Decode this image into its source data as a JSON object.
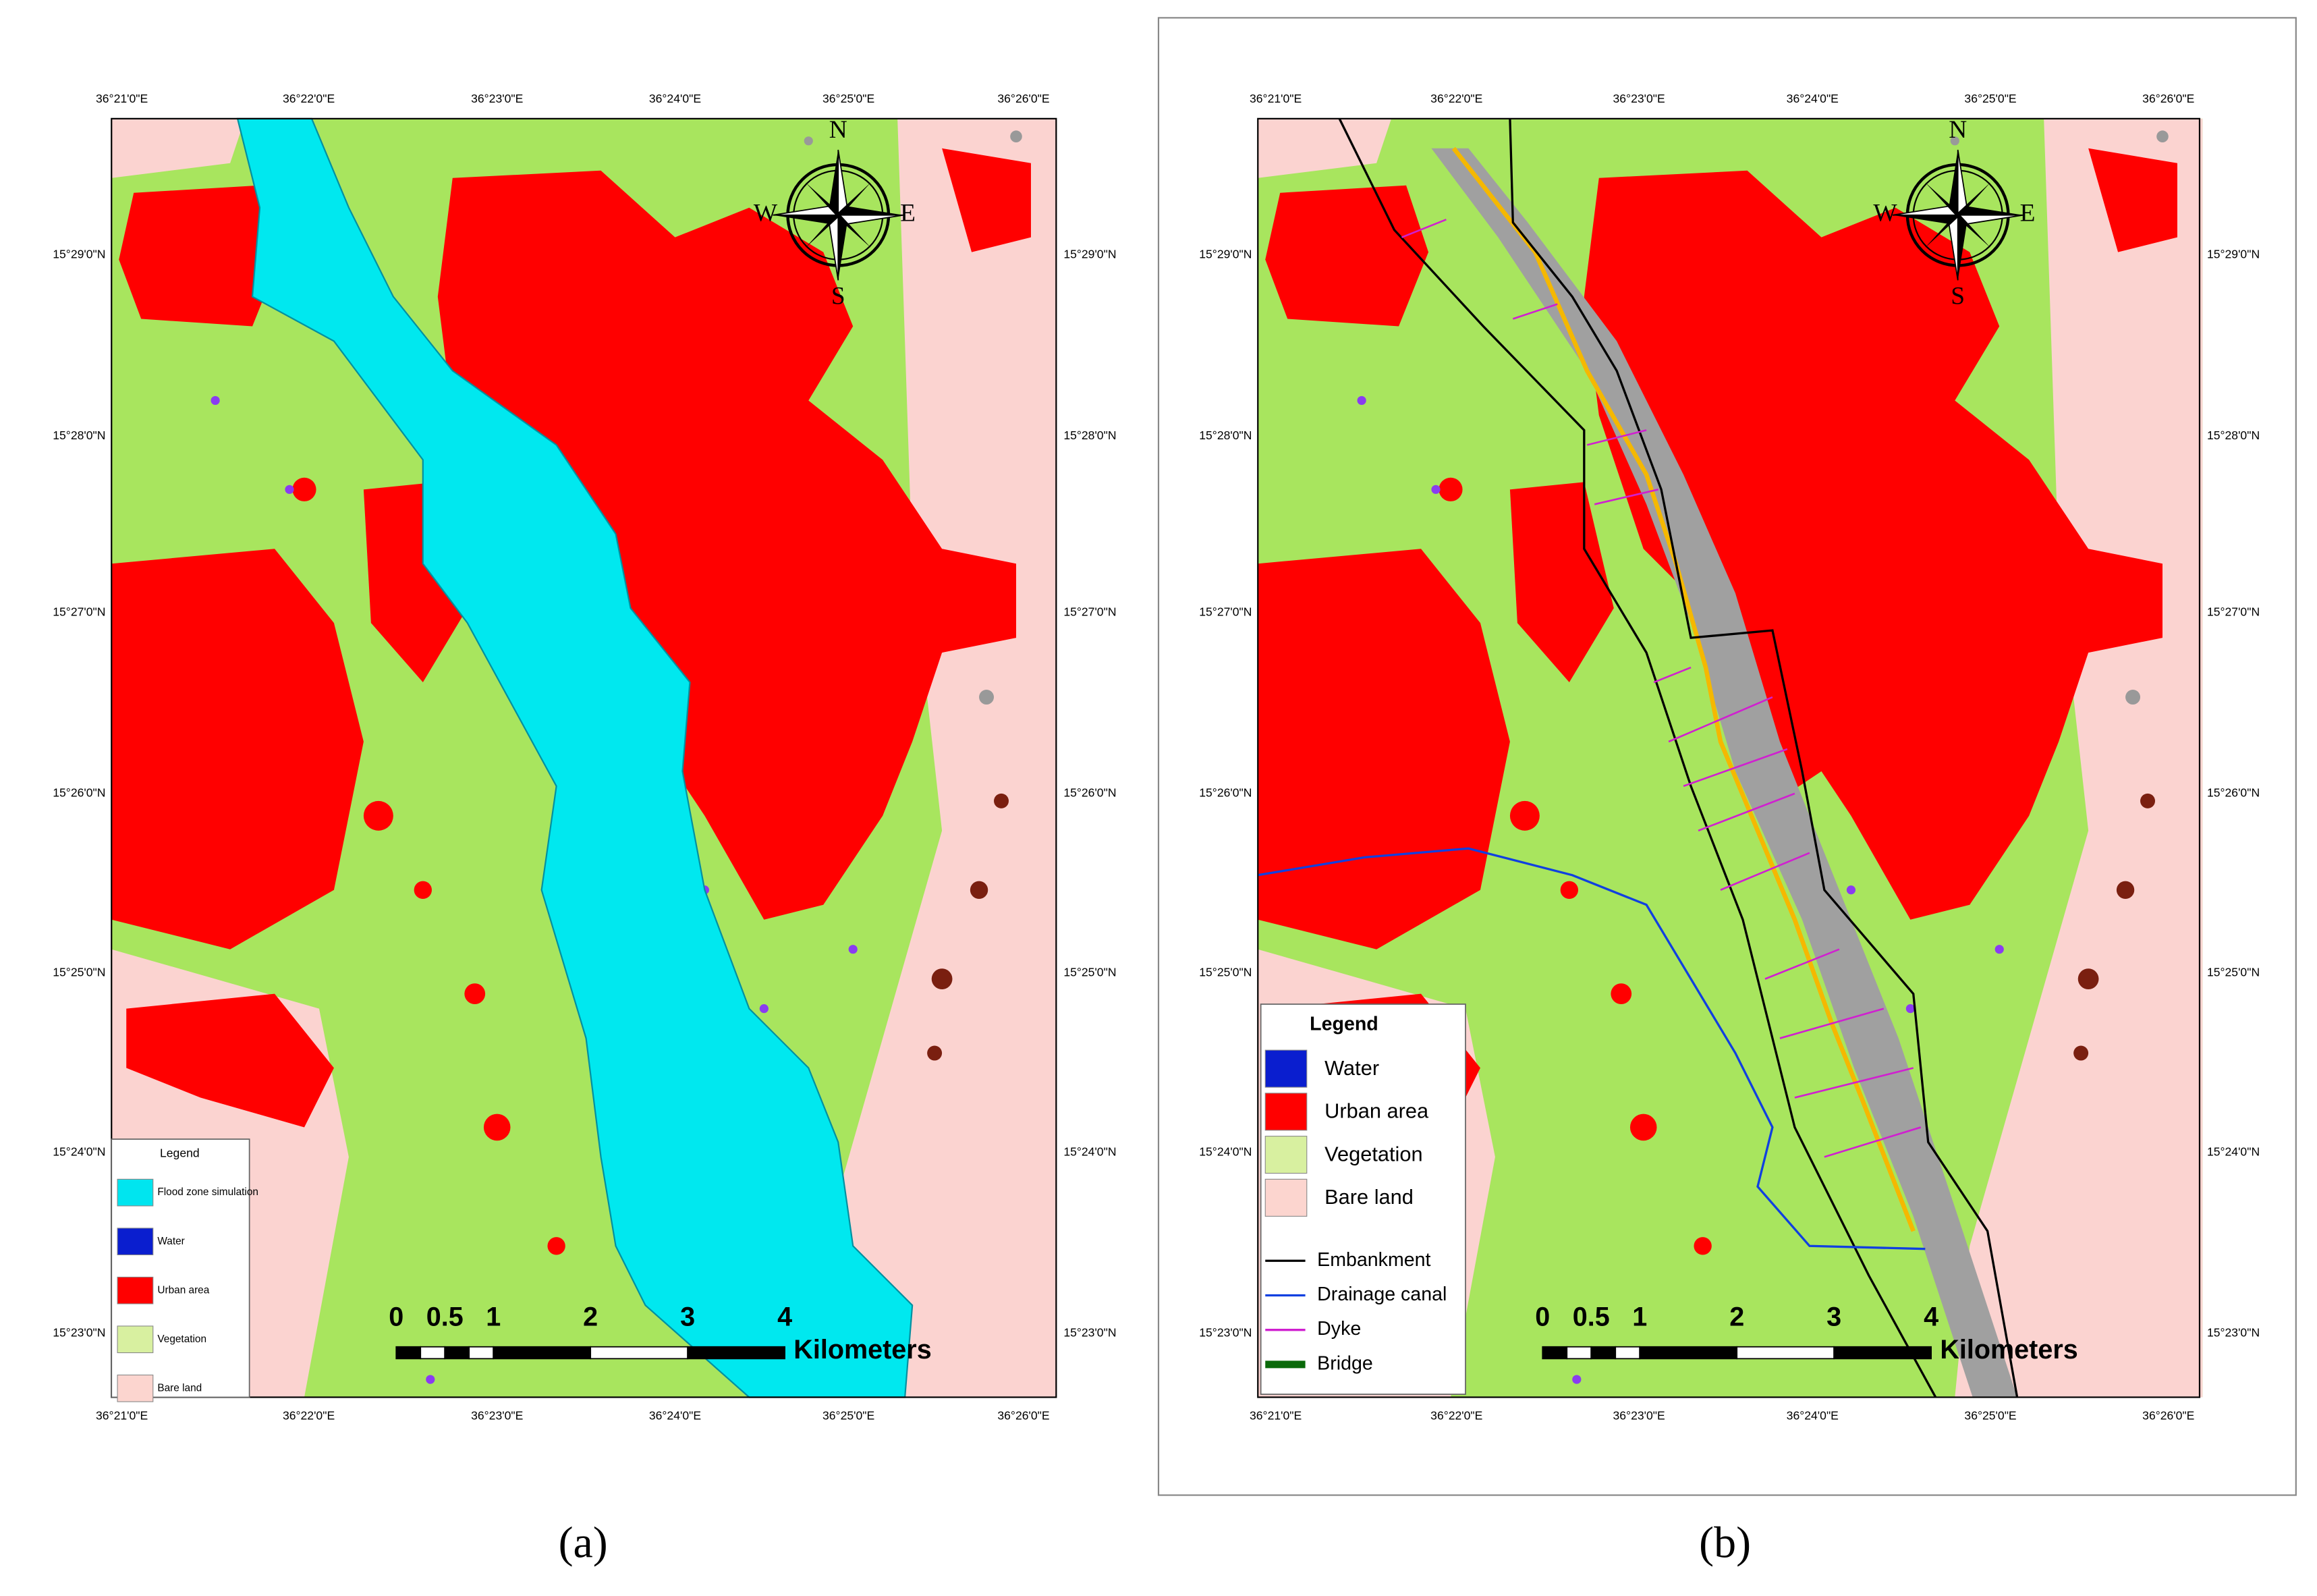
{
  "graticule": {
    "longitudes": [
      "36°21'0\"E",
      "36°22'0\"E",
      "36°23'0\"E",
      "36°24'0\"E",
      "36°25'0\"E",
      "36°26'0\"E"
    ],
    "latitudes": [
      "15°29'0\"N",
      "15°28'0\"N",
      "15°27'0\"N",
      "15°26'0\"N",
      "15°25'0\"N",
      "15°24'0\"N",
      "15°23'0\"N"
    ]
  },
  "compass": {
    "north": "N",
    "east": "E",
    "south": "S",
    "west": "W"
  },
  "scale_bar": {
    "labels": [
      "0",
      "0.5",
      "1",
      "2",
      "3",
      "4"
    ],
    "unit": "Kilometers"
  },
  "panels": [
    {
      "caption": "(a)",
      "legend": {
        "title": "Legend",
        "items": [
          "Flood zone simulation",
          "Water",
          "Urban area",
          "Vegetation",
          "Bare land"
        ]
      }
    },
    {
      "caption": "(b)",
      "legend": {
        "title": "Legend",
        "items": [
          "Water",
          "Urban area",
          "Vegetation",
          "Bare land",
          "Embankment",
          "Drainage canal",
          "Dyke",
          "Bridge"
        ]
      }
    }
  ]
}
